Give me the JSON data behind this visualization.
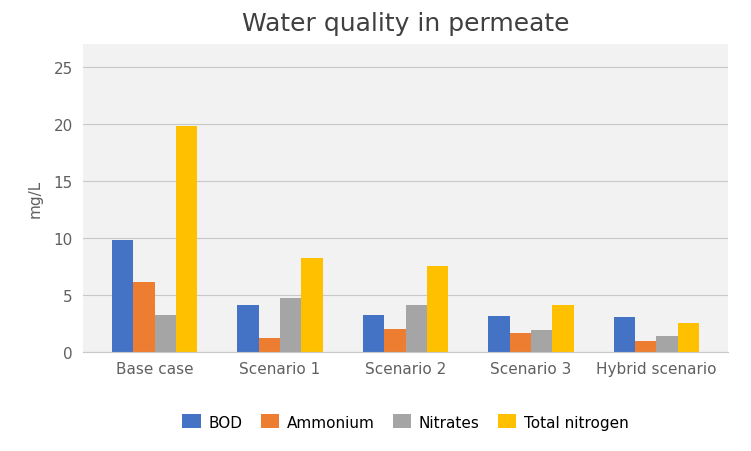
{
  "title": "Water quality in permeate",
  "ylabel": "mg/L",
  "categories": [
    "Base case",
    "Scenario 1",
    "Scenario 2",
    "Scenario 3",
    "Hybrid scenario"
  ],
  "series": [
    {
      "label": "BOD",
      "color": "#4472C4",
      "values": [
        9.8,
        4.1,
        3.2,
        3.1,
        3.0
      ]
    },
    {
      "label": "Ammonium",
      "color": "#ED7D31",
      "values": [
        6.1,
        1.2,
        2.0,
        1.6,
        0.9
      ]
    },
    {
      "label": "Nitrates",
      "color": "#A5A5A5",
      "values": [
        3.2,
        4.7,
        4.1,
        1.9,
        1.4
      ]
    },
    {
      "label": "Total nitrogen",
      "color": "#FFC000",
      "values": [
        19.8,
        8.2,
        7.5,
        4.1,
        2.5
      ]
    }
  ],
  "ylim": [
    0,
    27
  ],
  "yticks": [
    0,
    5,
    10,
    15,
    20,
    25
  ],
  "background_color": "#ffffff",
  "plot_bg_color": "#f2f2f2",
  "grid_color": "#c8c8c8",
  "title_fontsize": 18,
  "axis_label_fontsize": 11,
  "tick_fontsize": 11,
  "legend_fontsize": 11,
  "bar_width": 0.17,
  "title_color": "#404040",
  "tick_color": "#606060"
}
